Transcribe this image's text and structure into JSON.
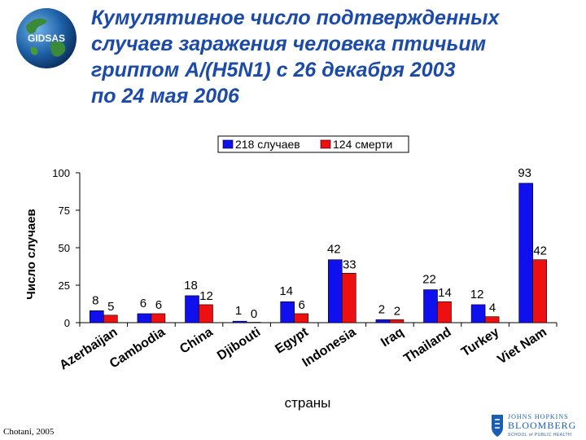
{
  "title_lines": [
    "Кумулятивное число подтвержденных",
    "случаев заражения человека птичьим",
    "гриппом A/(H5N1) с 26 декабря 2003",
    "по  24 мая 2006"
  ],
  "logo_text": "GIDSAS",
  "credit": "Chotani, 2005",
  "institution": {
    "line1": "JOHNS HOPKINS",
    "line2": "BLOOMBERG",
    "line3": "SCHOOL of PUBLIC HEALTH"
  },
  "colors": {
    "title": "#1b4aa8",
    "cases": "#1010ee",
    "deaths": "#ee1010",
    "accent": "#1a5fb4"
  },
  "chart_data": {
    "type": "bar",
    "title": "",
    "xlabel": "страны",
    "ylabel": "Число случаев",
    "ylim": [
      0,
      100
    ],
    "yticks": [
      0,
      25,
      50,
      75,
      100
    ],
    "grid": false,
    "legend_position": "top",
    "categories": [
      "Azerbaijan",
      "Cambodia",
      "China",
      "Djibouti",
      "Egypt",
      "Indonesia",
      "Iraq",
      "Thailand",
      "Turkey",
      "Viet Nam"
    ],
    "series": [
      {
        "name": "218 случаев",
        "color": "#1010ee",
        "values": [
          8,
          6,
          18,
          1,
          14,
          42,
          2,
          22,
          12,
          93
        ]
      },
      {
        "name": "124 смерти",
        "color": "#ee1010",
        "values": [
          5,
          6,
          12,
          0,
          6,
          33,
          2,
          14,
          4,
          42
        ]
      }
    ]
  }
}
